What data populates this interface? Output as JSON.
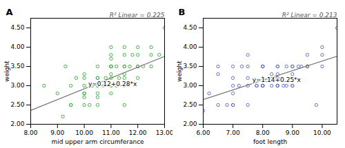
{
  "chart_data": [
    {
      "type": "scatter",
      "title": "A",
      "subtitle": "R² Linear = 0.225",
      "x_label": "mid upper arm circumferance",
      "y_label": "weight",
      "xlim": [
        8.0,
        13.0
      ],
      "ylim": [
        2.0,
        4.75
      ],
      "xticks": [
        {
          "value": 8.0,
          "label": "8.00"
        },
        {
          "value": 9.0,
          "label": "9.00"
        },
        {
          "value": 10.0,
          "label": "10.00"
        },
        {
          "value": 11.0,
          "label": "11.00"
        },
        {
          "value": 12.0,
          "label": "12.00"
        },
        {
          "value": 13.0,
          "label": "13.00"
        }
      ],
      "yticks": [
        {
          "value": 2.0,
          "label": "2.00"
        },
        {
          "value": 2.5,
          "label": "2.50"
        },
        {
          "value": 3.0,
          "label": "3.00"
        },
        {
          "value": 3.5,
          "label": "3.50"
        },
        {
          "value": 4.0,
          "label": "4.00"
        },
        {
          "value": 4.5,
          "label": "4.50"
        }
      ],
      "grid": false,
      "annotations": [
        {
          "text": "y=0.12+0.28*x",
          "x": 10.15,
          "y": 3.05
        }
      ],
      "series": [
        {
          "type": "scatter",
          "marker": "circle",
          "color": "#33aa33",
          "x": [
            8.5,
            9.0,
            9.3,
            9.5,
            9.5,
            9.7,
            10.0,
            10.0,
            10.0,
            10.0,
            10.0,
            10.0,
            10.2,
            10.3,
            10.5,
            10.5,
            10.5,
            10.5,
            10.5,
            10.5,
            10.5,
            10.7,
            10.8,
            11.0,
            11.0,
            11.0,
            11.0,
            11.0,
            11.0,
            11.0,
            11.0,
            11.0,
            11.0,
            11.2,
            11.2,
            11.3,
            11.5,
            11.5,
            11.5,
            11.5,
            11.5,
            11.5,
            11.5,
            11.7,
            11.8,
            12.0,
            12.0,
            12.0,
            12.0,
            12.0,
            12.2,
            12.5,
            12.5,
            12.5,
            12.8,
            13.0,
            9.2,
            9.5,
            10.0,
            10.5,
            11.0,
            11.5
          ],
          "values": [
            3.0,
            2.8,
            3.5,
            2.5,
            3.0,
            3.2,
            2.8,
            3.0,
            3.2,
            2.5,
            2.7,
            3.3,
            2.5,
            3.0,
            2.5,
            2.8,
            3.0,
            3.2,
            3.5,
            2.7,
            3.0,
            3.0,
            3.2,
            3.0,
            3.2,
            3.5,
            3.8,
            4.0,
            3.3,
            3.7,
            2.8,
            3.5,
            3.0,
            3.0,
            3.5,
            3.2,
            3.0,
            3.3,
            3.5,
            3.8,
            4.0,
            2.5,
            3.5,
            3.5,
            3.8,
            3.5,
            3.8,
            4.0,
            3.2,
            3.5,
            3.5,
            3.8,
            4.0,
            3.5,
            3.8,
            4.5,
            2.2,
            2.5,
            2.8,
            3.2,
            3.5,
            3.2
          ]
        },
        {
          "type": "line",
          "line_style": "solid",
          "color": "#777777",
          "x": [
            8.0,
            13.0
          ],
          "values": [
            2.36,
            3.76
          ]
        }
      ]
    },
    {
      "type": "scatter",
      "title": "B",
      "subtitle": "R² Linear = 0.213",
      "x_label": "foot length",
      "y_label": "weight",
      "xlim": [
        6.0,
        10.5
      ],
      "ylim": [
        2.0,
        4.75
      ],
      "xticks": [
        {
          "value": 6.0,
          "label": "6.00"
        },
        {
          "value": 7.0,
          "label": "7.00"
        },
        {
          "value": 8.0,
          "label": "8.00"
        },
        {
          "value": 9.0,
          "label": "9.00"
        },
        {
          "value": 10.0,
          "label": "10.00"
        }
      ],
      "yticks": [
        {
          "value": 2.0,
          "label": "2.00"
        },
        {
          "value": 2.5,
          "label": "2.50"
        },
        {
          "value": 3.0,
          "label": "3.00"
        },
        {
          "value": 3.5,
          "label": "3.50"
        },
        {
          "value": 4.0,
          "label": "4.00"
        },
        {
          "value": 4.5,
          "label": "4.50"
        }
      ],
      "grid": false,
      "annotations": [
        {
          "text": "y=1.14+0.25*x",
          "x": 7.65,
          "y": 3.15
        }
      ],
      "series": [
        {
          "type": "scatter",
          "marker": "circle",
          "color": "#5566bb",
          "x": [
            6.0,
            6.5,
            6.5,
            6.5,
            7.0,
            7.0,
            7.0,
            7.0,
            7.0,
            7.0,
            7.2,
            7.5,
            7.5,
            7.5,
            7.5,
            7.8,
            8.0,
            8.0,
            8.0,
            8.0,
            8.0,
            8.0,
            8.0,
            8.0,
            8.0,
            8.0,
            8.2,
            8.3,
            8.5,
            8.5,
            8.5,
            8.5,
            8.5,
            8.5,
            8.5,
            8.7,
            8.8,
            9.0,
            9.0,
            9.0,
            9.0,
            9.0,
            9.0,
            9.2,
            9.5,
            9.5,
            9.5,
            9.8,
            10.0,
            10.0,
            10.0,
            10.5,
            6.2,
            6.8,
            7.3,
            7.5,
            7.8,
            8.3,
            8.5,
            8.8,
            9.3,
            9.5
          ],
          "values": [
            2.35,
            3.5,
            3.3,
            2.5,
            2.5,
            3.0,
            2.8,
            3.5,
            3.2,
            2.5,
            3.0,
            3.0,
            3.2,
            2.5,
            3.5,
            3.0,
            3.0,
            3.2,
            3.5,
            3.0,
            3.5,
            3.0,
            3.2,
            3.5,
            3.2,
            3.0,
            3.2,
            3.0,
            3.0,
            3.2,
            3.5,
            3.0,
            3.3,
            3.2,
            3.5,
            3.0,
            3.5,
            3.0,
            3.3,
            3.2,
            3.5,
            3.0,
            3.5,
            3.5,
            3.5,
            3.8,
            3.5,
            2.5,
            3.5,
            3.8,
            4.0,
            4.5,
            2.8,
            2.5,
            3.5,
            3.8,
            3.0,
            3.3,
            3.0,
            3.0,
            3.5,
            3.5
          ]
        },
        {
          "type": "line",
          "line_style": "solid",
          "color": "#777777",
          "x": [
            6.0,
            10.5
          ],
          "values": [
            2.64,
            3.765
          ]
        }
      ]
    }
  ]
}
